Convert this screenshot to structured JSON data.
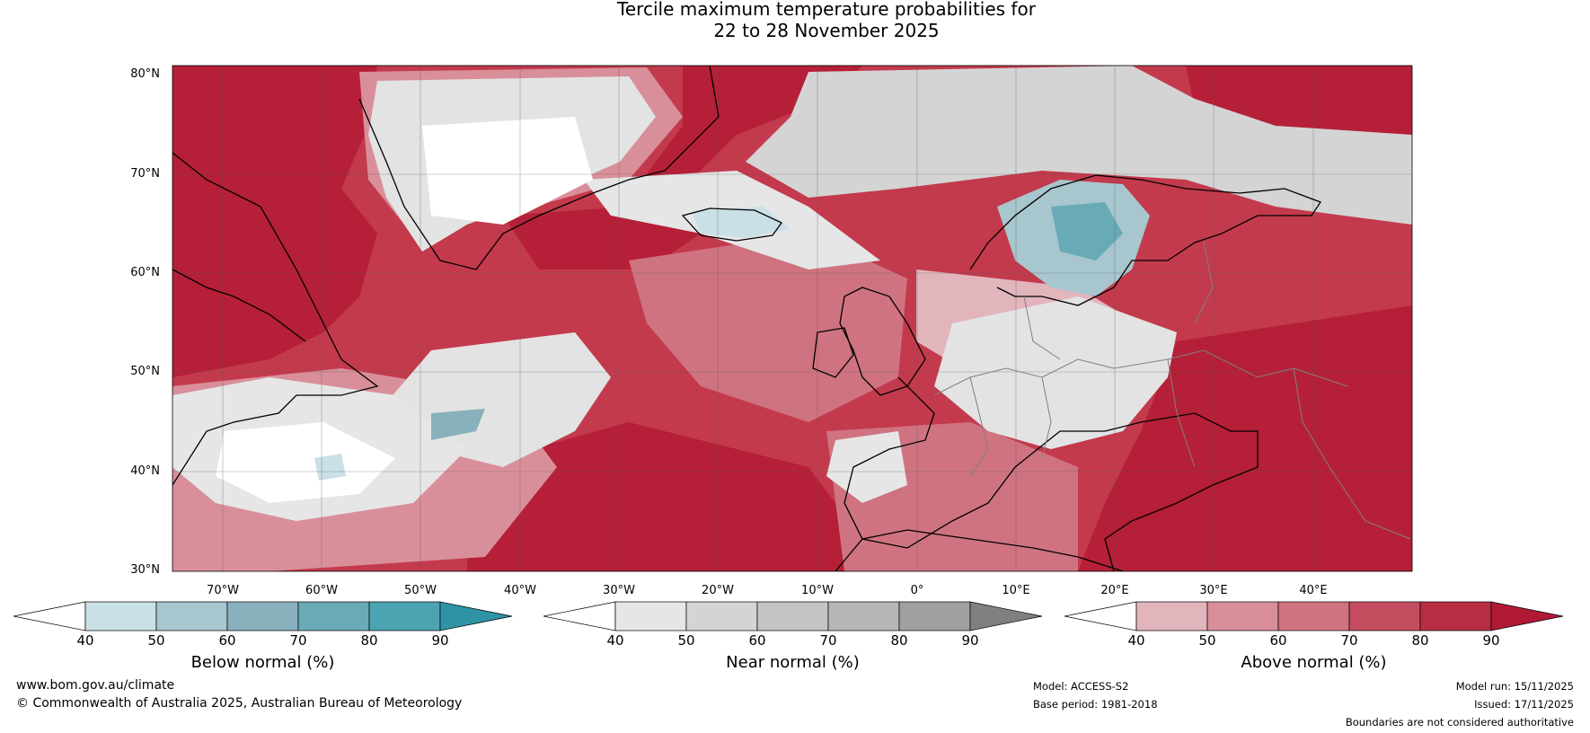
{
  "title": {
    "line1": "Tercile maximum temperature probabilities for",
    "line2": "22 to 28 November 2025"
  },
  "map": {
    "lat_labels": [
      "80°N",
      "70°N",
      "60°N",
      "50°N",
      "40°N",
      "30°N"
    ],
    "lon_labels": [
      "70°W",
      "60°W",
      "50°W",
      "40°W",
      "30°W",
      "20°W",
      "10°W",
      "0°",
      "10°E",
      "20°E",
      "30°E",
      "40°E"
    ],
    "colors": {
      "ocean_warm": "#c33a4c",
      "deep_warm": "#b51f38",
      "near_normal": "#e3e3e3",
      "cool": "#c6dfe6",
      "coastline": "#000000",
      "boundary": "#808080"
    }
  },
  "legends": [
    {
      "title": "Below normal (%)",
      "ticks": [
        "40",
        "50",
        "60",
        "70",
        "80",
        "90"
      ],
      "colors": [
        "#ffffff",
        "#c9e0e6",
        "#a7c6cd",
        "#89b0bd",
        "#68abb7",
        "#4ca3b2",
        "#2f93a6"
      ]
    },
    {
      "title": "Near normal (%)",
      "ticks": [
        "40",
        "50",
        "60",
        "70",
        "80",
        "90"
      ],
      "colors": [
        "#ffffff",
        "#e6e6e6",
        "#d4d4d4",
        "#c4c4c4",
        "#b5b6b6",
        "#a0a0a0",
        "#808080"
      ]
    },
    {
      "title": "Above normal (%)",
      "ticks": [
        "40",
        "50",
        "60",
        "70",
        "80",
        "90"
      ],
      "colors": [
        "#ffffff",
        "#e2b5bd",
        "#d98f9a",
        "#cf7380",
        "#c34d5e",
        "#b72e43",
        "#b01a35"
      ]
    }
  ],
  "footer": {
    "website": "www.bom.gov.au/climate",
    "copyright": "© Commonwealth of Australia 2025, Australian Bureau of Meteorology",
    "model": "Model: ACCESS-S2",
    "base_period": "Base period: 1981-2018",
    "model_run": "Model run: 15/11/2025",
    "issued": "Issued: 17/11/2025",
    "disclaimer": "Boundaries are not considered authoritative"
  }
}
